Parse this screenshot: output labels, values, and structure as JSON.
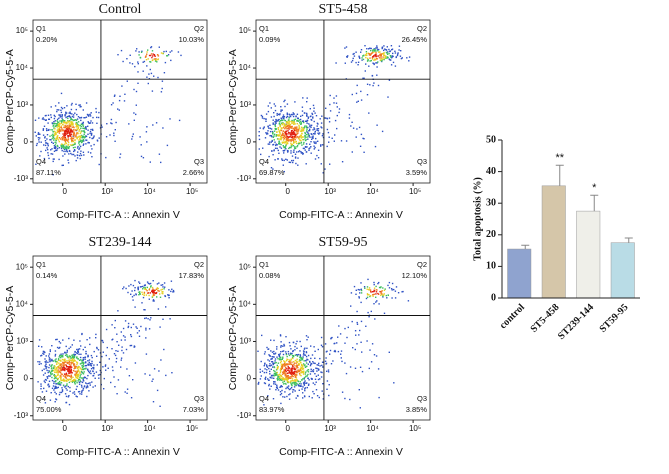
{
  "chart_data": [
    {
      "type": "flow",
      "title": "Control",
      "xlabel": "Comp-FITC-A :: Annexin V",
      "ylabel": "Comp-PerCP-Cy5-5-A",
      "categories": [
        "Q1",
        "Q2",
        "Q3",
        "Q4"
      ],
      "values": [
        0.2,
        10.03,
        2.66,
        87.11
      ],
      "value_labels": [
        "0.20%",
        "10.03%",
        "2.66%",
        "87.11%"
      ],
      "xlim": [
        -700,
        250000
      ],
      "ylim": [
        -1300,
        200000
      ],
      "xticks": [
        0,
        {
          "value": 1000,
          "label": "10³"
        },
        {
          "value": 10000,
          "label": "10⁴"
        },
        {
          "value": 100000,
          "label": "10⁵"
        }
      ],
      "yticks": [
        {
          "value": -1000,
          "label": "-10³"
        },
        0,
        {
          "value": 1000,
          "label": "10³"
        },
        {
          "value": 10000,
          "label": "10⁴"
        },
        {
          "value": 100000,
          "label": "10⁵"
        }
      ]
    },
    {
      "type": "flow",
      "title": "ST5-458",
      "xlabel": "Comp-FITC-A :: Annexin V",
      "ylabel": "Comp-PerCP-Cy5-5-A",
      "categories": [
        "Q1",
        "Q2",
        "Q3",
        "Q4"
      ],
      "values": [
        0.09,
        26.45,
        3.59,
        69.87
      ],
      "value_labels": [
        "0.09%",
        "26.45%",
        "3.59%",
        "69.87%"
      ],
      "xlim": [
        -700,
        250000
      ],
      "ylim": [
        -1300,
        200000
      ],
      "xticks": [
        0,
        {
          "value": 1000,
          "label": "10³"
        },
        {
          "value": 10000,
          "label": "10⁴"
        },
        {
          "value": 100000,
          "label": "10⁵"
        }
      ],
      "yticks": [
        {
          "value": -1000,
          "label": "-10³"
        },
        0,
        {
          "value": 1000,
          "label": "10³"
        },
        {
          "value": 10000,
          "label": "10⁴"
        },
        {
          "value": 100000,
          "label": "10⁵"
        }
      ]
    },
    {
      "type": "flow",
      "title": "ST239-144",
      "xlabel": "Comp-FITC-A :: Annexin V",
      "ylabel": "Comp-PerCP-Cy5-5-A",
      "categories": [
        "Q1",
        "Q2",
        "Q3",
        "Q4"
      ],
      "values": [
        0.14,
        17.83,
        7.03,
        75.0
      ],
      "value_labels": [
        "0.14%",
        "17.83%",
        "7.03%",
        "75.00%"
      ],
      "xlim": [
        -700,
        250000
      ],
      "ylim": [
        -1300,
        200000
      ],
      "xticks": [
        0,
        {
          "value": 1000,
          "label": "10³"
        },
        {
          "value": 10000,
          "label": "10⁴"
        },
        {
          "value": 100000,
          "label": "10⁵"
        }
      ],
      "yticks": [
        {
          "value": -1000,
          "label": "-10³"
        },
        0,
        {
          "value": 1000,
          "label": "10³"
        },
        {
          "value": 10000,
          "label": "10⁴"
        },
        {
          "value": 100000,
          "label": "10⁵"
        }
      ]
    },
    {
      "type": "flow",
      "title": "ST59-95",
      "xlabel": "Comp-FITC-A :: Annexin V",
      "ylabel": "Comp-PerCP-Cy5-5-A",
      "categories": [
        "Q1",
        "Q2",
        "Q3",
        "Q4"
      ],
      "values": [
        0.08,
        12.1,
        3.85,
        83.97
      ],
      "value_labels": [
        "0.08%",
        "12.10%",
        "3.85%",
        "83.97%"
      ],
      "xlim": [
        -700,
        250000
      ],
      "ylim": [
        -1300,
        200000
      ],
      "xticks": [
        0,
        {
          "value": 1000,
          "label": "10³"
        },
        {
          "value": 10000,
          "label": "10⁴"
        },
        {
          "value": 100000,
          "label": "10⁵"
        }
      ],
      "yticks": [
        {
          "value": -1000,
          "label": "-10³"
        },
        0,
        {
          "value": 1000,
          "label": "10³"
        },
        {
          "value": 10000,
          "label": "10⁴"
        },
        {
          "value": 100000,
          "label": "10⁵"
        }
      ]
    },
    {
      "type": "bar",
      "ylabel": "Total apoptosis (%)",
      "categories": [
        "control",
        "ST5-458",
        "ST239-144",
        "ST59-95"
      ],
      "values": [
        15.5,
        35.5,
        27.5,
        17.5
      ],
      "errors": [
        1.2,
        6.5,
        5.0,
        1.5
      ],
      "colors": [
        "#8fa3cf",
        "#d5c6a9",
        "#efefe9",
        "#b9dce6"
      ],
      "annotations": [
        {
          "x": "ST5-458",
          "text": "**"
        },
        {
          "x": "ST239-144",
          "text": "*"
        }
      ],
      "ylim": [
        0,
        50
      ],
      "yticks": [
        0,
        10,
        20,
        30,
        40,
        50
      ]
    }
  ]
}
